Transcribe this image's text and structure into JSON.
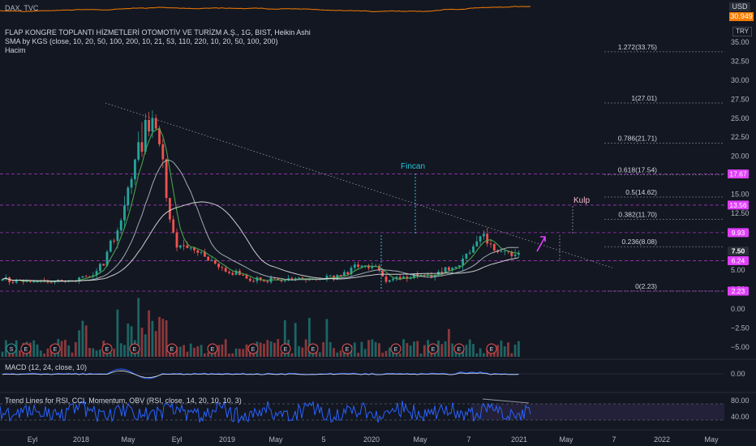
{
  "header": {
    "dax_label": "DAX, TVC",
    "title": "FLAP KONGRE TOPLANTI HİZMETLERİ OTOMOTİV VE TURİZM A.Ş., 1G, BIST, Heikin Ashi",
    "sma_label": "SMA by KGS (close, 10, 20, 50, 100, 200, 10, 21, 53, 110, 220, 10, 20, 50, 100, 200)",
    "volume_label": "Hacim",
    "macd_label": "MACD (12, 24, close, 10)",
    "trend_label": "Trend Lines for RSI, CCI, Momentum, OBV (RSI, close, 14, 20, 10, 10, 3)"
  },
  "currency": {
    "usd": "USD",
    "try": "TRY",
    "dax_value": "30.949"
  },
  "colors": {
    "background": "#131722",
    "up": "#26a69a",
    "down": "#ef5350",
    "dax": "#f57c00",
    "fib_line": "#787b86",
    "magenta": "#e040fb",
    "teal_annot": "#26c6da",
    "kulp": "#f8bbd0",
    "sma_green": "#4caf50",
    "sma_white": "#e0e0e0",
    "macd_blue": "#2962ff",
    "rsi_blue": "#2962ff",
    "price_tag_dark": "#2a2e39"
  },
  "chart_data": {
    "type": "candlestick",
    "symbol": "FLAP",
    "x_ticks": [
      "Eyl",
      "2018",
      "May",
      "Eyl",
      "2019",
      "May",
      "5",
      "2020",
      "May",
      "7",
      "2021",
      "May",
      "7",
      "2022",
      "May"
    ],
    "y_ticks": [
      "35.00",
      "32.50",
      "30.00",
      "27.50",
      "25.00",
      "22.50",
      "20.00",
      "17.50",
      "15.00",
      "12.50",
      "10.00",
      "7.50",
      "5.00",
      "2.50"
    ],
    "ylim": [
      2.0,
      37.5
    ],
    "price_path": [
      [
        0,
        3.6
      ],
      [
        10,
        3.5
      ],
      [
        20,
        3.7
      ],
      [
        25,
        4.2
      ],
      [
        29,
        6.0
      ],
      [
        32,
        9.5
      ],
      [
        35,
        13.0
      ],
      [
        37,
        16.5
      ],
      [
        39,
        21.0
      ],
      [
        41,
        24.0
      ],
      [
        43,
        26.5
      ],
      [
        44,
        22.0
      ],
      [
        46,
        19.5
      ],
      [
        47,
        15.0
      ],
      [
        48,
        11.5
      ],
      [
        50,
        8.5
      ],
      [
        52,
        7.6
      ],
      [
        55,
        7.2
      ],
      [
        58,
        6.4
      ],
      [
        62,
        5.5
      ],
      [
        66,
        4.6
      ],
      [
        70,
        3.9
      ],
      [
        75,
        3.5
      ],
      [
        80,
        3.7
      ],
      [
        85,
        3.9
      ],
      [
        90,
        3.7
      ],
      [
        94,
        4.0
      ],
      [
        98,
        4.4
      ],
      [
        102,
        5.8
      ],
      [
        106,
        5.6
      ],
      [
        108,
        4.7
      ],
      [
        110,
        3.5
      ],
      [
        113,
        3.8
      ],
      [
        118,
        4.4
      ],
      [
        122,
        4.3
      ],
      [
        126,
        4.8
      ],
      [
        130,
        5.0
      ],
      [
        133,
        7.0
      ],
      [
        136,
        8.9
      ],
      [
        139,
        9.6
      ],
      [
        141,
        7.6
      ],
      [
        144,
        6.8
      ],
      [
        148,
        7.5
      ]
    ],
    "fib_levels": [
      {
        "label": "1.272(33.75)",
        "value": 33.75
      },
      {
        "label": "1(27.01)",
        "value": 27.01
      },
      {
        "label": "0.786(21.71)",
        "value": 21.71
      },
      {
        "label": "0.618(17.54)",
        "value": 17.54
      },
      {
        "label": "0.5(14.62)",
        "value": 14.62
      },
      {
        "label": "0.382(11.70)",
        "value": 11.7
      },
      {
        "label": "0.236(8.08)",
        "value": 8.08
      },
      {
        "label": "0(2.23)",
        "value": 2.23
      }
    ],
    "price_tags": [
      {
        "label": "17.67",
        "value": 17.67,
        "style": "magenta"
      },
      {
        "label": "13.56",
        "value": 13.56,
        "style": "magenta"
      },
      {
        "label": "9.93",
        "value": 9.93,
        "style": "magenta"
      },
      {
        "label": "7.50",
        "value": 7.5,
        "style": "dark"
      },
      {
        "label": "6.24",
        "value": 6.24,
        "style": "magenta"
      },
      {
        "label": "2.23",
        "value": 2.23,
        "style": "magenta"
      }
    ],
    "annotations": [
      {
        "text": "Fincan",
        "color": "teal_annot"
      },
      {
        "text": "Kulp",
        "color": "kulp"
      }
    ],
    "volume_ticks": [
      "0.00",
      "−2.50",
      "−5.00"
    ],
    "macd_ticks": [
      "0.00"
    ],
    "rsi_ticks": [
      "80.00",
      "40.00"
    ],
    "earnings_label": "E",
    "split_label": "S"
  }
}
